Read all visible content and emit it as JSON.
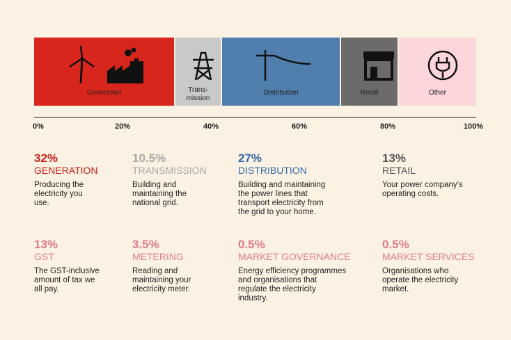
{
  "chart_data": {
    "type": "stacked-bar",
    "categories": [
      "Generation",
      "Trans-mission",
      "Distribution",
      "Retail",
      "Other"
    ],
    "values": [
      32,
      10.5,
      27,
      13,
      17.5
    ],
    "colors": [
      "#d9261c",
      "#c9c9c9",
      "#507fae",
      "#6b6b6b",
      "#fdd6dc"
    ],
    "label_colors": [
      "#222222",
      "#222222",
      "#222222",
      "#222222",
      "#222222"
    ],
    "xlim": [
      0,
      100
    ],
    "xticks": [
      {
        "value": 0,
        "label": "0%"
      },
      {
        "value": 20,
        "label": "20%"
      },
      {
        "value": 40,
        "label": "40%"
      },
      {
        "value": 60,
        "label": "60%"
      },
      {
        "value": 80,
        "label": "80%"
      },
      {
        "value": 100,
        "label": "100%"
      }
    ]
  },
  "cards": [
    {
      "value": "32%",
      "title": "GENERATION",
      "color": "#c8201a",
      "lines": [
        "Producing the",
        "electricity you",
        "use."
      ]
    },
    {
      "value": "10.5%",
      "title": "TRANSMISSION",
      "color": "#a8a8a8",
      "lines": [
        "Building and",
        "maintaining the",
        "national grid."
      ]
    },
    {
      "value": "27%",
      "title": "DISTRIBUTION",
      "color": "#2f6aa6",
      "lines": [
        "Building and maintaining",
        "the power lines that",
        "transport electricity from",
        "the grid to your home."
      ]
    },
    {
      "value": "13%",
      "title": "RETAIL",
      "color": "#555555",
      "lines": [
        "Your power company's",
        "operating costs."
      ]
    },
    {
      "value": "13%",
      "title": "GST",
      "color": "#e07a8c",
      "lines": [
        "The GST-inclusive",
        "amount of tax we",
        "all pay."
      ]
    },
    {
      "value": "3.5%",
      "title": "METERING",
      "color": "#e07a8c",
      "lines": [
        "Reading and",
        "maintaining your",
        "electricity meter."
      ]
    },
    {
      "value": "0.5%",
      "title": "MARKET GOVERNANCE",
      "color": "#e07a8c",
      "lines": [
        "Energy efficiency programmes",
        "and organisations that",
        "regulate the electricity",
        "industry."
      ]
    },
    {
      "value": "0.5%",
      "title": "MARKET SERVICES",
      "color": "#e07a8c",
      "lines": [
        "Organisations who",
        "operate the electricity",
        "market."
      ]
    }
  ]
}
